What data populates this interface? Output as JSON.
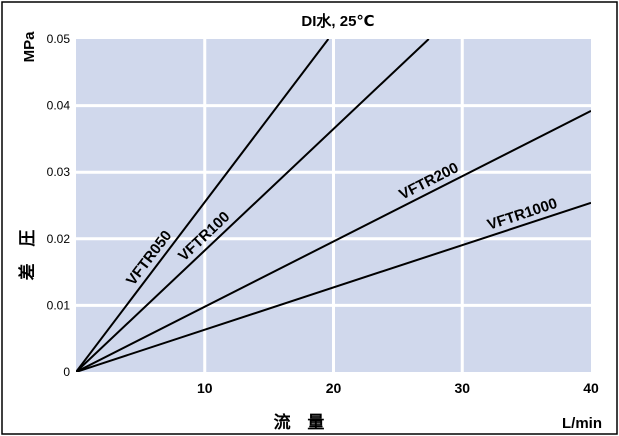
{
  "chart_data": {
    "type": "line",
    "title": "DI水, 25℃",
    "ylabel_unit": "MPa",
    "ylabel": "差 圧",
    "xlabel": "流 量",
    "xlabel_unit": "L/min",
    "xlim": [
      0,
      40
    ],
    "ylim": [
      0,
      0.05
    ],
    "x_ticks": [
      10,
      20,
      30,
      40
    ],
    "y_ticks": [
      0,
      0.01,
      0.02,
      0.03,
      0.04,
      0.05
    ],
    "y_tick_labels": [
      "0",
      "0.01",
      "0.02",
      "0.03",
      "0.04",
      "0.05"
    ],
    "x_tick_labels": [
      "10",
      "20",
      "30",
      "40"
    ],
    "grid": true,
    "colors": {
      "plot_background": "#d0d8ec",
      "grid": "#ffffff",
      "line": "#000000",
      "frame": "#000000"
    },
    "series": [
      {
        "name": "VFTR050",
        "x": [
          0,
          19.6
        ],
        "y": [
          0,
          0.05
        ]
      },
      {
        "name": "VFTR100",
        "x": [
          0,
          27.4
        ],
        "y": [
          0,
          0.05
        ]
      },
      {
        "name": "VFTR200",
        "x": [
          0,
          40
        ],
        "y": [
          0,
          0.0392
        ]
      },
      {
        "name": "VFTR1000",
        "x": [
          0,
          40
        ],
        "y": [
          0,
          0.0254
        ]
      }
    ]
  }
}
